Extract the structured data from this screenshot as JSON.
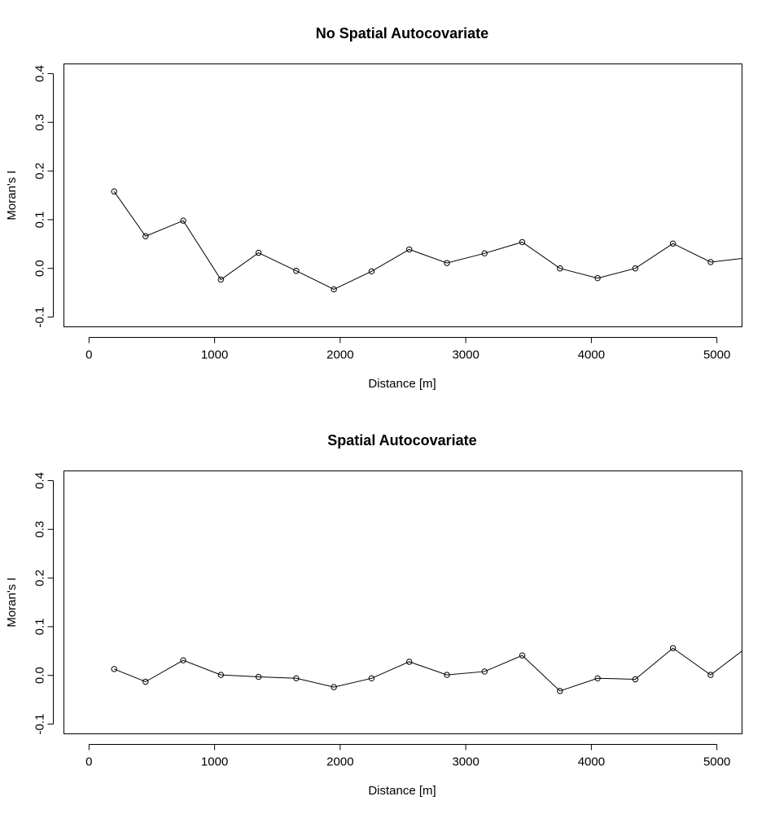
{
  "chart_data": [
    {
      "type": "line",
      "title": "No Spatial Autocovariate",
      "xlabel": "Distance [m]",
      "ylabel": "Moran's I",
      "xlim": [
        -200,
        5200
      ],
      "ylim": [
        -0.12,
        0.42
      ],
      "xticks": [
        "0",
        "1000",
        "2000",
        "3000",
        "4000",
        "5000"
      ],
      "yticks": [
        "-0.1",
        "0.0",
        "0.1",
        "0.2",
        "0.3",
        "0.4"
      ],
      "grid": false,
      "x": [
        200,
        450,
        750,
        1050,
        1350,
        1650,
        1950,
        2250,
        2550,
        2850,
        3150,
        3450,
        3750,
        4050,
        4350,
        4650,
        4950,
        5250
      ],
      "y": [
        0.158,
        0.066,
        0.098,
        -0.023,
        0.032,
        -0.005,
        -0.043,
        -0.006,
        0.039,
        0.011,
        0.031,
        0.054,
        0.0,
        -0.02,
        0.0,
        0.051,
        0.013,
        0.022
      ]
    },
    {
      "type": "line",
      "title": "Spatial Autocovariate",
      "xlabel": "Distance [m]",
      "ylabel": "Moran's I",
      "xlim": [
        -200,
        5200
      ],
      "ylim": [
        -0.12,
        0.42
      ],
      "xticks": [
        "0",
        "1000",
        "2000",
        "3000",
        "4000",
        "5000"
      ],
      "yticks": [
        "-0.1",
        "0.0",
        "0.1",
        "0.2",
        "0.3",
        "0.4"
      ],
      "grid": false,
      "x": [
        200,
        450,
        750,
        1050,
        1350,
        1650,
        1950,
        2250,
        2550,
        2850,
        3150,
        3450,
        3750,
        4050,
        4350,
        4650,
        4950,
        5250
      ],
      "y": [
        0.013,
        -0.013,
        0.031,
        0.001,
        -0.003,
        -0.006,
        -0.024,
        -0.006,
        0.028,
        0.001,
        0.008,
        0.041,
        -0.032,
        -0.006,
        -0.008,
        0.056,
        0.001,
        0.06
      ]
    }
  ]
}
